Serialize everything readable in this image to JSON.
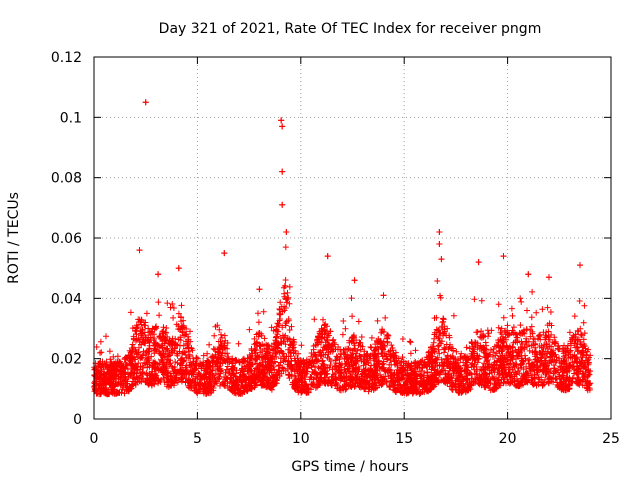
{
  "chart_data": {
    "type": "scatter",
    "title": "Day 321 of 2021, Rate Of TEC Index for receiver pngm",
    "xlabel": "GPS time / hours",
    "ylabel": "ROTI / TECUs",
    "xlim": [
      0,
      25
    ],
    "ylim": [
      0,
      0.12
    ],
    "xticks": [
      0,
      5,
      10,
      15,
      20,
      25
    ],
    "yticks": [
      0,
      0.02,
      0.04,
      0.06,
      0.08,
      0.1,
      0.12
    ],
    "xtick_labels": [
      "0",
      "5",
      "10",
      "15",
      "20",
      "25"
    ],
    "ytick_labels": [
      "0",
      "0.02",
      "0.04",
      "0.06",
      "0.08",
      "0.1",
      "0.12"
    ],
    "grid": true,
    "marker": "+",
    "series": [
      {
        "name": "ROTI",
        "color": "#ff0000",
        "x_range": [
          0,
          24
        ],
        "notes": "dense scatter of ~5000 points, baseline roughly 0.005-0.03 TECU",
        "peaks": [
          {
            "x": 2.5,
            "y": 0.105
          },
          {
            "x": 2.2,
            "y": 0.056
          },
          {
            "x": 3.1,
            "y": 0.048
          },
          {
            "x": 4.1,
            "y": 0.05
          },
          {
            "x": 6.3,
            "y": 0.055
          },
          {
            "x": 8.0,
            "y": 0.043
          },
          {
            "x": 9.05,
            "y": 0.099
          },
          {
            "x": 9.1,
            "y": 0.097
          },
          {
            "x": 9.1,
            "y": 0.082
          },
          {
            "x": 9.1,
            "y": 0.071
          },
          {
            "x": 9.3,
            "y": 0.062
          },
          {
            "x": 11.3,
            "y": 0.054
          },
          {
            "x": 12.6,
            "y": 0.046
          },
          {
            "x": 14.0,
            "y": 0.041
          },
          {
            "x": 16.7,
            "y": 0.062
          },
          {
            "x": 16.7,
            "y": 0.058
          },
          {
            "x": 16.8,
            "y": 0.053
          },
          {
            "x": 18.6,
            "y": 0.052
          },
          {
            "x": 19.8,
            "y": 0.054
          },
          {
            "x": 21.0,
            "y": 0.048
          },
          {
            "x": 22.0,
            "y": 0.047
          },
          {
            "x": 23.5,
            "y": 0.051
          }
        ]
      }
    ]
  }
}
